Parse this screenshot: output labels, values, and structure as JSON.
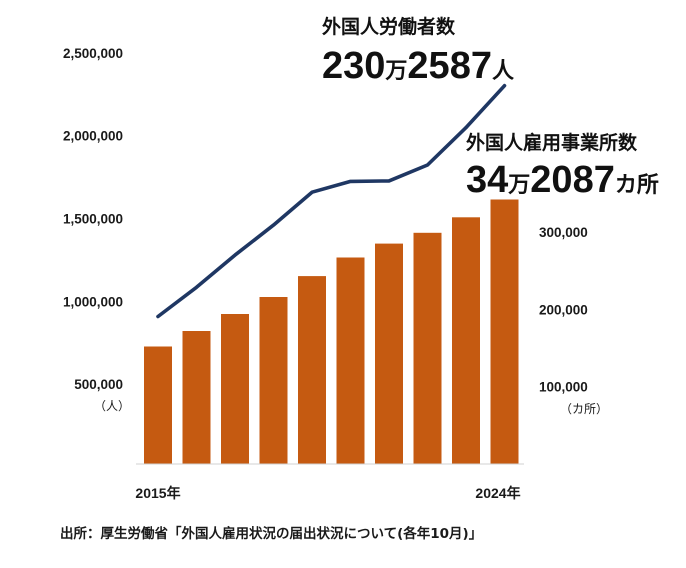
{
  "chart_data": {
    "type": "bar+line",
    "x_labels": {
      "start": "2015年",
      "end": "2024年"
    },
    "bars": {
      "name": "外国人雇用事業所数",
      "axis": "right",
      "values": [
        152000,
        172000,
        194000,
        216000,
        243000,
        267000,
        285000,
        299000,
        319000,
        342087
      ],
      "color": "#c55a11"
    },
    "line": {
      "name": "外国人労働者数",
      "axis": "left",
      "values": [
        908000,
        1084000,
        1279000,
        1460000,
        1659000,
        1724000,
        1727000,
        1823000,
        2049000,
        2302587
      ],
      "color": "#1f3763"
    },
    "left_axis": {
      "ticks": [
        "500,000",
        "1,000,000",
        "1,500,000",
        "2,000,000",
        "2,500,000"
      ],
      "tick_values": [
        500000,
        1000000,
        1500000,
        2000000,
        2500000
      ],
      "unit": "（人）"
    },
    "right_axis": {
      "ticks": [
        "100,000",
        "200,000",
        "300,000"
      ],
      "tick_values": [
        100000,
        200000,
        300000
      ],
      "unit": "（カ所）"
    },
    "annotations": {
      "workers": {
        "label": "外国人労働者数",
        "num1": "230",
        "unit1": "万",
        "num2": "2587",
        "unit2": "人"
      },
      "establishments": {
        "label": "外国人雇用事業所数",
        "num1": "34",
        "unit1": "万",
        "num2": "2087",
        "unit2": "カ所"
      }
    },
    "source": "出所：厚生労働省「外国人雇用状況の届出状況について(各年10月)」"
  }
}
